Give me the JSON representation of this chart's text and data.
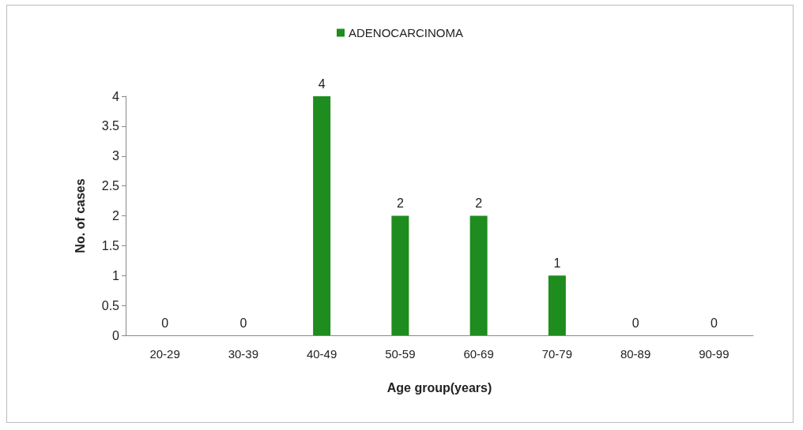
{
  "chart_data": {
    "type": "bar",
    "xlabel": "Age group(years)",
    "ylabel": "No. of cases",
    "categories": [
      "20-29",
      "30-39",
      "40-49",
      "50-59",
      "60-69",
      "70-79",
      "80-89",
      "90-99"
    ],
    "series": [
      {
        "name": "ADENOCARCINOMA",
        "color": "#1e8c1e",
        "values": [
          0,
          0,
          4,
          2,
          2,
          1,
          0,
          0
        ]
      }
    ],
    "ylim": [
      0,
      4
    ],
    "yticks": [
      0,
      0.5,
      1,
      1.5,
      2,
      2.5,
      3,
      3.5,
      4
    ],
    "grid": false,
    "legend": "top",
    "data_labels": true
  }
}
